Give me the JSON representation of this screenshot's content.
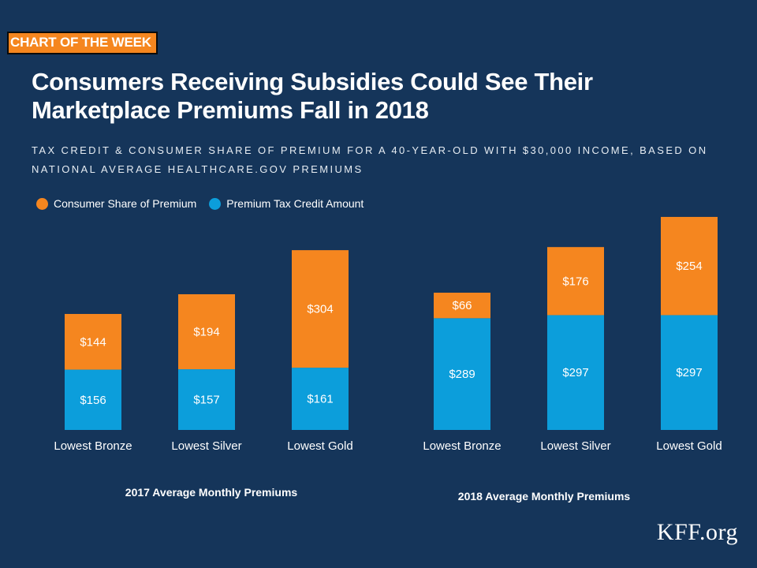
{
  "badge": "CHART OF THE WEEK",
  "title": "Consumers Receiving Subsidies Could See Their Marketplace Premiums Fall in 2018",
  "subtitle": "TAX CREDIT & CONSUMER SHARE OF PREMIUM FOR A 40-YEAR-OLD WITH $30,000 INCOME, BASED ON NATIONAL AVERAGE HEALTHCARE.GOV PREMIUMS",
  "legend": {
    "consumer": "Consumer Share of Premium",
    "credit": "Premium Tax Credit Amount"
  },
  "colors": {
    "consumer": "#f5861f",
    "credit": "#0c9edb",
    "background": "#15355a"
  },
  "logo": "KFF.org",
  "chart_data": {
    "type": "bar",
    "stacked": true,
    "title": "Consumers Receiving Subsidies Could See Their Marketplace Premiums Fall in 2018",
    "groups": [
      {
        "label": "2017 Average Monthly Premiums",
        "categories": [
          "Lowest Bronze",
          "Lowest Silver",
          "Lowest Gold"
        ],
        "series": [
          {
            "name": "Premium Tax Credit Amount",
            "values": [
              156,
              157,
              161
            ],
            "labels": [
              "$156",
              "$157",
              "$161"
            ]
          },
          {
            "name": "Consumer Share of Premium",
            "values": [
              144,
              194,
              304
            ],
            "labels": [
              "$144",
              "$194",
              "$304"
            ]
          }
        ]
      },
      {
        "label": "2018 Average Monthly Premiums",
        "categories": [
          "Lowest Bronze",
          "Lowest Silver",
          "Lowest Gold"
        ],
        "series": [
          {
            "name": "Premium Tax Credit Amount",
            "values": [
              289,
              297,
              297
            ],
            "labels": [
              "$289",
              "$297",
              "$297"
            ]
          },
          {
            "name": "Consumer Share of Premium",
            "values": [
              66,
              176,
              254
            ],
            "labels": [
              "$66",
              "$176",
              "$254"
            ]
          }
        ]
      }
    ],
    "ylim": [
      0,
      560
    ],
    "grid": false,
    "legend_position": "top-left"
  }
}
